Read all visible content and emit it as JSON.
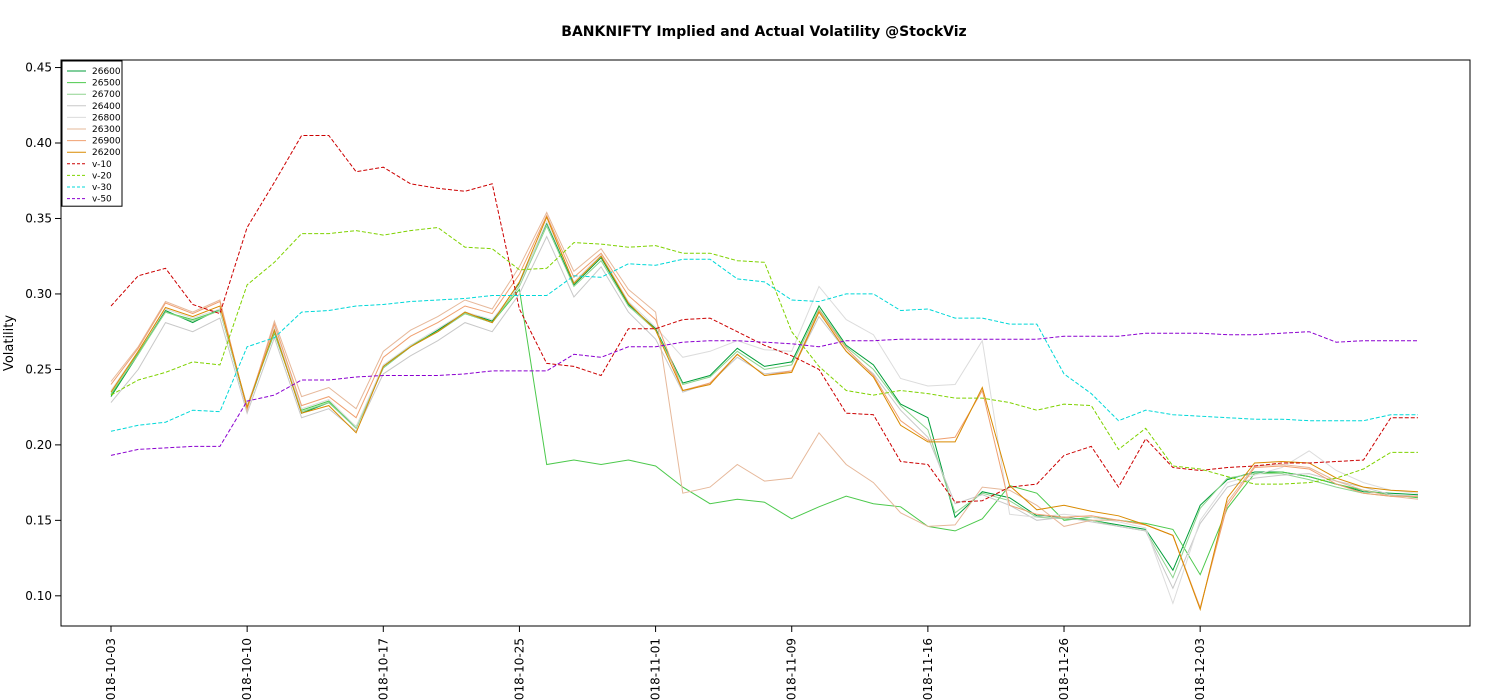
{
  "chart_data": {
    "type": "line",
    "title": "BANKNIFTY Implied and Actual Volatility @StockViz",
    "xlabel": "",
    "ylabel": "Volatility",
    "ylim": [
      0.08,
      0.455
    ],
    "yticks": [
      0.1,
      0.15,
      0.2,
      0.25,
      0.3,
      0.35,
      0.4,
      0.45
    ],
    "ytick_labels": [
      "0.10",
      "0.15",
      "0.20",
      "0.25",
      "0.30",
      "0.35",
      "0.40",
      "0.45"
    ],
    "x": [
      "2018-10-03",
      "2018-10-04",
      "2018-10-05",
      "2018-10-08",
      "2018-10-09",
      "2018-10-10",
      "2018-10-11",
      "2018-10-12",
      "2018-10-15",
      "2018-10-16",
      "2018-10-17",
      "2018-10-19",
      "2018-10-22",
      "2018-10-23",
      "2018-10-24",
      "2018-10-25",
      "2018-10-26",
      "2018-10-29",
      "2018-10-30",
      "2018-10-31",
      "2018-11-01",
      "2018-11-02",
      "2018-11-05",
      "2018-11-06",
      "2018-11-07",
      "2018-11-09",
      "2018-11-12",
      "2018-11-13",
      "2018-11-14",
      "2018-11-15",
      "2018-11-16",
      "2018-11-19",
      "2018-11-20",
      "2018-11-21",
      "2018-11-22",
      "2018-11-26",
      "2018-11-27",
      "2018-11-28",
      "2018-11-29",
      "2018-11-30",
      "2018-12-03",
      "2018-12-04",
      "2018-12-05",
      "2018-12-06",
      "2018-12-07",
      "2018-12-10",
      "2018-12-11",
      "2018-12-12",
      "2018-12-13"
    ],
    "xticks": [
      "2018-10-03",
      "2018-10-10",
      "2018-10-17",
      "2018-10-25",
      "2018-11-01",
      "2018-11-09",
      "2018-11-16",
      "2018-11-26",
      "2018-12-03"
    ],
    "xtick_labels": [
      "2018-10-03",
      "2018-10-10",
      "2018-10-17",
      "2018-10-25",
      "2018-11-01",
      "2018-11-09",
      "2018-11-16",
      "2018-11-26",
      "2018-12-03"
    ],
    "legend_position": "top-left",
    "grid": false,
    "series": [
      {
        "name": "26600",
        "color": "#009e39",
        "dash": "solid",
        "values": [
          0.232,
          0.26,
          0.289,
          0.281,
          0.29,
          0.224,
          0.276,
          0.221,
          0.228,
          0.212,
          0.251,
          0.265,
          0.276,
          0.288,
          0.282,
          0.307,
          0.347,
          0.306,
          0.324,
          0.293,
          0.277,
          0.241,
          0.246,
          0.264,
          0.252,
          0.255,
          0.292,
          0.266,
          0.253,
          0.227,
          0.218,
          0.152,
          0.169,
          0.165,
          0.153,
          0.152,
          0.15,
          0.147,
          0.144,
          0.117,
          0.16,
          0.177,
          0.182,
          0.182,
          0.179,
          0.174,
          0.169,
          0.168,
          0.167
        ]
      },
      {
        "name": "26500",
        "color": "#4cc94c",
        "dash": "solid",
        "values": [
          0.233,
          0.261,
          0.288,
          0.283,
          0.289,
          0.226,
          0.274,
          0.223,
          0.229,
          0.211,
          0.252,
          0.266,
          0.275,
          0.287,
          0.281,
          0.303,
          0.187,
          0.19,
          0.187,
          0.19,
          0.186,
          0.172,
          0.161,
          0.164,
          0.162,
          0.151,
          0.159,
          0.166,
          0.161,
          0.159,
          0.146,
          0.143,
          0.151,
          0.173,
          0.168,
          0.15,
          0.152,
          0.15,
          0.148,
          0.144,
          0.114,
          0.158,
          0.181,
          0.182,
          0.179,
          0.174,
          0.17,
          0.167,
          0.165
        ]
      },
      {
        "name": "26700",
        "color": "#8fd48f",
        "dash": "solid",
        "values": [
          0.234,
          0.26,
          0.288,
          0.282,
          0.289,
          0.225,
          0.275,
          0.222,
          0.228,
          0.211,
          0.251,
          0.265,
          0.275,
          0.287,
          0.281,
          0.305,
          0.345,
          0.305,
          0.322,
          0.292,
          0.276,
          0.24,
          0.245,
          0.262,
          0.25,
          0.253,
          0.29,
          0.265,
          0.25,
          0.226,
          0.21,
          0.155,
          0.168,
          0.163,
          0.152,
          0.151,
          0.15,
          0.146,
          0.143,
          0.112,
          0.158,
          0.178,
          0.181,
          0.181,
          0.177,
          0.172,
          0.168,
          0.166,
          0.166
        ]
      },
      {
        "name": "26400",
        "color": "#c8c8c8",
        "dash": "solid",
        "values": [
          0.228,
          0.25,
          0.281,
          0.275,
          0.284,
          0.221,
          0.271,
          0.218,
          0.224,
          0.209,
          0.247,
          0.259,
          0.269,
          0.281,
          0.275,
          0.3,
          0.338,
          0.298,
          0.318,
          0.288,
          0.27,
          0.235,
          0.241,
          0.258,
          0.247,
          0.249,
          0.285,
          0.262,
          0.247,
          0.223,
          0.205,
          0.161,
          0.167,
          0.16,
          0.15,
          0.152,
          0.149,
          0.146,
          0.143,
          0.105,
          0.148,
          0.172,
          0.178,
          0.18,
          0.181,
          0.176,
          0.172,
          0.167,
          0.166
        ]
      },
      {
        "name": "26800",
        "color": "#dcdcdc",
        "dash": "solid",
        "values": [
          0.236,
          0.262,
          0.29,
          0.284,
          0.29,
          0.226,
          0.278,
          0.224,
          0.23,
          0.212,
          0.253,
          0.266,
          0.277,
          0.288,
          0.283,
          0.306,
          0.348,
          0.308,
          0.326,
          0.295,
          0.278,
          0.258,
          0.262,
          0.269,
          0.263,
          0.262,
          0.305,
          0.283,
          0.273,
          0.244,
          0.239,
          0.24,
          0.269,
          0.154,
          0.152,
          0.154,
          0.152,
          0.149,
          0.145,
          0.095,
          0.15,
          0.175,
          0.18,
          0.185,
          0.196,
          0.183,
          0.175,
          0.17,
          0.168
        ]
      },
      {
        "name": "26300",
        "color": "#e6b89a",
        "dash": "solid",
        "values": [
          0.242,
          0.265,
          0.295,
          0.288,
          0.296,
          0.223,
          0.282,
          0.232,
          0.238,
          0.224,
          0.262,
          0.276,
          0.285,
          0.296,
          0.29,
          0.318,
          0.354,
          0.315,
          0.33,
          0.303,
          0.288,
          0.168,
          0.172,
          0.187,
          0.176,
          0.178,
          0.208,
          0.187,
          0.175,
          0.155,
          0.146,
          0.147,
          0.172,
          0.17,
          0.16,
          0.146,
          0.15,
          0.15,
          0.147,
          0.14,
          0.092,
          0.162,
          0.186,
          0.187,
          0.185,
          0.176,
          0.17,
          0.166,
          0.164
        ]
      },
      {
        "name": "26900",
        "color": "#f0a070",
        "dash": "solid",
        "values": [
          0.24,
          0.264,
          0.294,
          0.287,
          0.295,
          0.224,
          0.28,
          0.226,
          0.232,
          0.218,
          0.258,
          0.272,
          0.281,
          0.292,
          0.287,
          0.313,
          0.352,
          0.311,
          0.327,
          0.299,
          0.283,
          0.236,
          0.241,
          0.26,
          0.246,
          0.249,
          0.289,
          0.264,
          0.246,
          0.216,
          0.203,
          0.205,
          0.236,
          0.16,
          0.154,
          0.152,
          0.153,
          0.15,
          0.147,
          0.14,
          0.092,
          0.16,
          0.185,
          0.186,
          0.184,
          0.174,
          0.168,
          0.166,
          0.166
        ]
      },
      {
        "name": "26200",
        "color": "#d98a00",
        "dash": "solid",
        "values": [
          0.235,
          0.262,
          0.291,
          0.285,
          0.292,
          0.225,
          0.276,
          0.221,
          0.226,
          0.208,
          0.252,
          0.265,
          0.275,
          0.288,
          0.281,
          0.308,
          0.351,
          0.307,
          0.325,
          0.294,
          0.276,
          0.236,
          0.24,
          0.26,
          0.246,
          0.248,
          0.288,
          0.262,
          0.245,
          0.213,
          0.202,
          0.202,
          0.238,
          0.173,
          0.157,
          0.16,
          0.156,
          0.153,
          0.147,
          0.14,
          0.091,
          0.165,
          0.188,
          0.189,
          0.188,
          0.178,
          0.172,
          0.17,
          0.169
        ]
      },
      {
        "name": "v-10",
        "color": "#cc0000",
        "dash": "dash",
        "values": [
          0.292,
          0.312,
          0.317,
          0.293,
          0.287,
          0.344,
          0.374,
          0.405,
          0.405,
          0.381,
          0.384,
          0.373,
          0.37,
          0.368,
          0.373,
          0.29,
          0.254,
          0.252,
          0.246,
          0.277,
          0.277,
          0.283,
          0.284,
          0.275,
          0.266,
          0.259,
          0.25,
          0.221,
          0.22,
          0.189,
          0.187,
          0.162,
          0.163,
          0.172,
          0.174,
          0.193,
          0.199,
          0.172,
          0.204,
          0.185,
          0.183,
          0.185,
          0.186,
          0.188,
          0.188,
          0.189,
          0.19,
          0.218,
          0.218
        ]
      },
      {
        "name": "v-20",
        "color": "#7fd200",
        "dash": "dash",
        "values": [
          0.233,
          0.243,
          0.248,
          0.255,
          0.253,
          0.306,
          0.321,
          0.34,
          0.34,
          0.342,
          0.339,
          0.342,
          0.344,
          0.331,
          0.33,
          0.316,
          0.317,
          0.334,
          0.333,
          0.331,
          0.332,
          0.327,
          0.327,
          0.322,
          0.321,
          0.275,
          0.252,
          0.236,
          0.233,
          0.236,
          0.234,
          0.231,
          0.231,
          0.228,
          0.223,
          0.227,
          0.226,
          0.197,
          0.211,
          0.186,
          0.184,
          0.179,
          0.174,
          0.174,
          0.175,
          0.178,
          0.184,
          0.195,
          0.195
        ]
      },
      {
        "name": "v-30",
        "color": "#00d8d8",
        "dash": "dash",
        "values": [
          0.209,
          0.213,
          0.215,
          0.223,
          0.222,
          0.265,
          0.271,
          0.288,
          0.289,
          0.292,
          0.293,
          0.295,
          0.296,
          0.297,
          0.299,
          0.299,
          0.299,
          0.312,
          0.311,
          0.32,
          0.319,
          0.323,
          0.323,
          0.31,
          0.308,
          0.296,
          0.295,
          0.3,
          0.3,
          0.289,
          0.29,
          0.284,
          0.284,
          0.28,
          0.28,
          0.247,
          0.234,
          0.216,
          0.223,
          0.22,
          0.219,
          0.218,
          0.217,
          0.217,
          0.216,
          0.216,
          0.216,
          0.22,
          0.22
        ]
      },
      {
        "name": "v-50",
        "color": "#8b00d0",
        "dash": "dash",
        "values": [
          0.193,
          0.197,
          0.198,
          0.199,
          0.199,
          0.229,
          0.233,
          0.243,
          0.243,
          0.245,
          0.246,
          0.246,
          0.246,
          0.247,
          0.249,
          0.249,
          0.249,
          0.26,
          0.258,
          0.265,
          0.265,
          0.268,
          0.269,
          0.269,
          0.268,
          0.267,
          0.265,
          0.269,
          0.269,
          0.27,
          0.27,
          0.27,
          0.27,
          0.27,
          0.27,
          0.272,
          0.272,
          0.272,
          0.274,
          0.274,
          0.274,
          0.273,
          0.273,
          0.274,
          0.275,
          0.268,
          0.269,
          0.269,
          0.269
        ]
      }
    ]
  }
}
